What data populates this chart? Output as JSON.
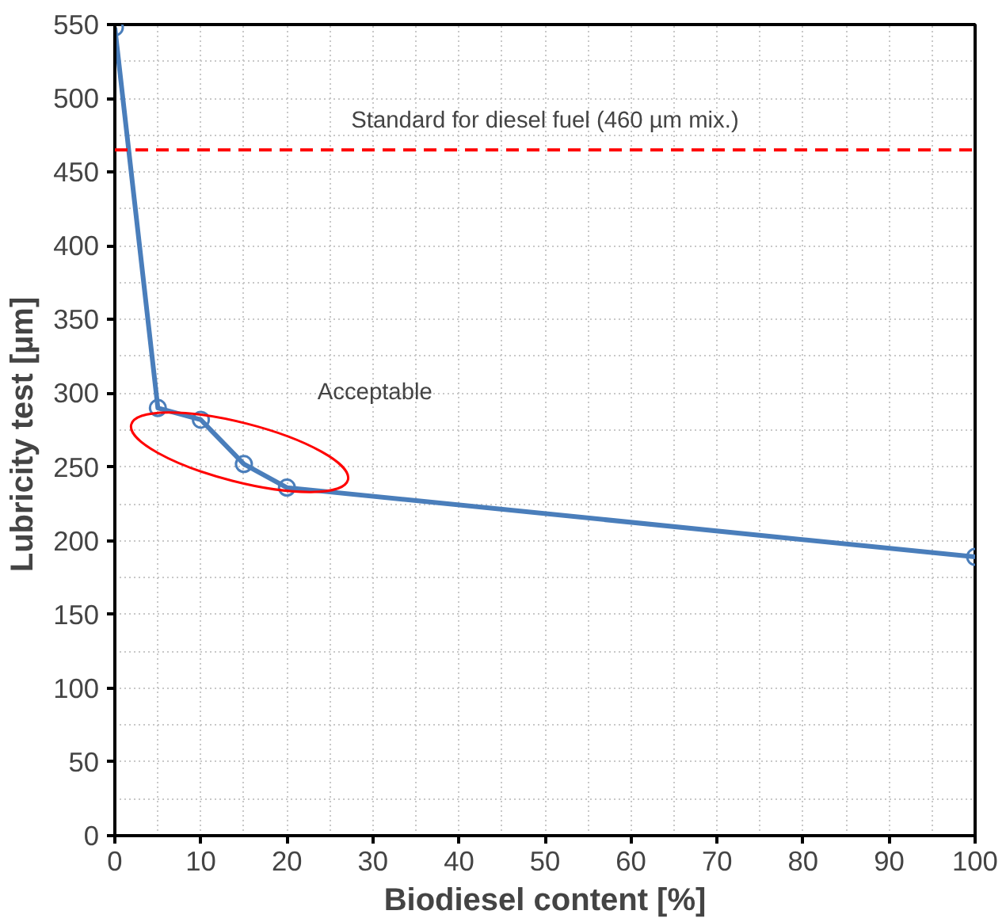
{
  "chart_data": {
    "type": "line",
    "xlabel": "Biodiesel content [%]",
    "ylabel": "Lubricity test  [µm]",
    "x": [
      0,
      5,
      10,
      15,
      20,
      100
    ],
    "series": [
      {
        "color": "#4a7ebb",
        "values": [
          548,
          290,
          282,
          252,
          236,
          189
        ]
      }
    ],
    "xlim": [
      0,
      100
    ],
    "ylim": [
      0,
      550
    ],
    "xticks": [
      0,
      10,
      20,
      30,
      40,
      50,
      60,
      70,
      80,
      90,
      100
    ],
    "yticks": [
      0,
      50,
      100,
      150,
      200,
      250,
      300,
      350,
      400,
      450,
      500,
      550
    ],
    "grid": true,
    "marker": "circle",
    "line_style": "solid",
    "ref_lines": [
      {
        "axis": "y",
        "value": 465,
        "label": "Standard for diesel fuel (460 µm mix.)",
        "color": "#ff0000",
        "line_style": "dashed"
      }
    ],
    "annotations": [
      "Acceptable"
    ]
  }
}
